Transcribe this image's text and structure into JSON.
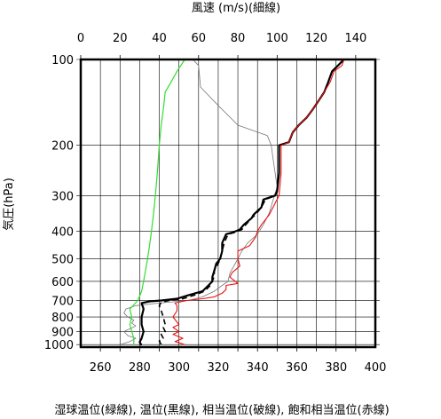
{
  "chart_data": {
    "type": "line",
    "title": "",
    "x_top_label": "風速 (m/s)(細線)",
    "x_bottom_label": "湿球温位(緑線), 温位(黒線), 相当温位(破線), 飽和相当温位(赤線)",
    "ylabel": "気圧(hPa)",
    "y_scale": "log",
    "ylim": [
      1020,
      100
    ],
    "x_bottom_lim": [
      250,
      400
    ],
    "x_top_lim": [
      0,
      150
    ],
    "grid": true,
    "y_ticks": [
      "100",
      "200",
      "300",
      "400",
      "500",
      "600",
      "700",
      "800",
      "900",
      "1000"
    ],
    "x_bottom_ticks": [
      "260",
      "280",
      "300",
      "320",
      "340",
      "360",
      "380",
      "400"
    ],
    "x_top_ticks": [
      "0",
      "20",
      "40",
      "60",
      "80",
      "100",
      "120",
      "140"
    ],
    "colors": {
      "wet_bulb": "#33dd33",
      "potential": "#000000",
      "equivalent": "#000000",
      "saturated": "#ee1111",
      "wind": "#777777"
    },
    "series": [
      {
        "key": "wind",
        "style": "thin-gray",
        "axis": "top",
        "points": [
          [
            20,
            1000
          ],
          [
            25,
            975
          ],
          [
            28,
            950
          ],
          [
            24,
            930
          ],
          [
            22,
            900
          ],
          [
            25,
            880
          ],
          [
            28,
            860
          ],
          [
            26,
            840
          ],
          [
            27,
            820
          ],
          [
            24,
            800
          ],
          [
            22,
            775
          ],
          [
            23,
            750
          ],
          [
            28,
            730
          ],
          [
            40,
            715
          ],
          [
            55,
            700
          ],
          [
            62,
            680
          ],
          [
            68,
            650
          ],
          [
            72,
            620
          ],
          [
            75,
            600
          ],
          [
            76,
            560
          ],
          [
            78,
            530
          ],
          [
            80,
            500
          ],
          [
            82,
            470
          ],
          [
            85,
            440
          ],
          [
            90,
            410
          ],
          [
            93,
            380
          ],
          [
            96,
            345
          ],
          [
            98,
            310
          ],
          [
            100,
            280
          ],
          [
            99,
            250
          ],
          [
            98,
            225
          ],
          [
            97,
            200
          ],
          [
            95,
            185
          ],
          [
            80,
            170
          ],
          [
            70,
            145
          ],
          [
            61,
            125
          ],
          [
            60,
            105
          ],
          [
            57,
            100
          ]
        ]
      },
      {
        "key": "wet_bulb",
        "style": "green",
        "axis": "bottom",
        "points": [
          [
            277,
            1000
          ],
          [
            277,
            950
          ],
          [
            276,
            900
          ],
          [
            275,
            850
          ],
          [
            276,
            800
          ],
          [
            275,
            750
          ],
          [
            277,
            725
          ],
          [
            279,
            700
          ],
          [
            281,
            650
          ],
          [
            282,
            600
          ],
          [
            283,
            550
          ],
          [
            284,
            500
          ],
          [
            285,
            450
          ],
          [
            286,
            400
          ],
          [
            287,
            350
          ],
          [
            288,
            300
          ],
          [
            289,
            250
          ],
          [
            290,
            200
          ],
          [
            291,
            170
          ],
          [
            292,
            150
          ],
          [
            293,
            130
          ],
          [
            296,
            120
          ],
          [
            299,
            110
          ],
          [
            303,
            100
          ]
        ]
      },
      {
        "key": "potential",
        "style": "black-solid",
        "axis": "bottom",
        "points": [
          [
            281,
            1005
          ],
          [
            280,
            980
          ],
          [
            281,
            950
          ],
          [
            282,
            900
          ],
          [
            281,
            850
          ],
          [
            281,
            800
          ],
          [
            282,
            750
          ],
          [
            281,
            715
          ],
          [
            285,
            705
          ],
          [
            291,
            700
          ],
          [
            299,
            690
          ],
          [
            305,
            670
          ],
          [
            312,
            650
          ],
          [
            315,
            620
          ],
          [
            317,
            600
          ],
          [
            317,
            580
          ],
          [
            318,
            550
          ],
          [
            319,
            520
          ],
          [
            321,
            500
          ],
          [
            322,
            470
          ],
          [
            322,
            440
          ],
          [
            324,
            410
          ],
          [
            327,
            405
          ],
          [
            331,
            395
          ],
          [
            333,
            380
          ],
          [
            337,
            360
          ],
          [
            338,
            350
          ],
          [
            342,
            330
          ],
          [
            343,
            310
          ],
          [
            349,
            300
          ],
          [
            350,
            290
          ],
          [
            351,
            250
          ],
          [
            351,
            200
          ],
          [
            356,
            195
          ],
          [
            358,
            180
          ],
          [
            361,
            170
          ],
          [
            365,
            160
          ],
          [
            368,
            150
          ],
          [
            371,
            140
          ],
          [
            374,
            130
          ],
          [
            376,
            120
          ],
          [
            378,
            110
          ],
          [
            381,
            105
          ],
          [
            384,
            100
          ]
        ]
      },
      {
        "key": "equivalent",
        "style": "black-dashed",
        "axis": "bottom",
        "points": [
          [
            291,
            1000
          ],
          [
            290,
            970
          ],
          [
            292,
            950
          ],
          [
            291,
            920
          ],
          [
            293,
            900
          ],
          [
            292,
            870
          ],
          [
            293,
            850
          ],
          [
            292,
            800
          ],
          [
            291,
            760
          ],
          [
            290,
            730
          ],
          [
            291,
            710
          ],
          [
            295,
            700
          ],
          [
            302,
            690
          ],
          [
            308,
            670
          ],
          [
            313,
            650
          ],
          [
            316,
            620
          ],
          [
            317,
            600
          ],
          [
            318,
            575
          ],
          [
            318,
            550
          ],
          [
            320,
            520
          ],
          [
            321,
            500
          ],
          [
            322,
            470
          ],
          [
            323,
            440
          ],
          [
            325,
            410
          ],
          [
            328,
            405
          ],
          [
            332,
            395
          ],
          [
            334,
            380
          ],
          [
            337,
            360
          ],
          [
            339,
            350
          ],
          [
            342,
            330
          ],
          [
            344,
            310
          ],
          [
            349,
            300
          ],
          [
            350,
            290
          ],
          [
            351,
            250
          ],
          [
            351,
            200
          ],
          [
            356,
            195
          ],
          [
            358,
            180
          ],
          [
            361,
            170
          ],
          [
            365,
            160
          ],
          [
            368,
            150
          ],
          [
            371,
            140
          ],
          [
            374,
            130
          ],
          [
            376,
            120
          ],
          [
            378,
            110
          ],
          [
            381,
            105
          ],
          [
            384,
            100
          ]
        ]
      },
      {
        "key": "saturated",
        "style": "red",
        "axis": "bottom",
        "points": [
          [
            303,
            1000
          ],
          [
            298,
            975
          ],
          [
            302,
            950
          ],
          [
            297,
            920
          ],
          [
            300,
            900
          ],
          [
            297,
            870
          ],
          [
            300,
            850
          ],
          [
            297,
            800
          ],
          [
            299,
            760
          ],
          [
            299,
            730
          ],
          [
            298,
            715
          ],
          [
            304,
            700
          ],
          [
            312,
            690
          ],
          [
            318,
            680
          ],
          [
            322,
            660
          ],
          [
            324,
            640
          ],
          [
            324,
            620
          ],
          [
            330,
            610
          ],
          [
            326,
            580
          ],
          [
            327,
            560
          ],
          [
            331,
            530
          ],
          [
            330,
            500
          ],
          [
            330,
            470
          ],
          [
            336,
            450
          ],
          [
            339,
            420
          ],
          [
            340,
            400
          ],
          [
            342,
            380
          ],
          [
            346,
            350
          ],
          [
            351,
            300
          ],
          [
            352,
            250
          ],
          [
            352,
            200
          ],
          [
            356,
            195
          ],
          [
            358,
            180
          ],
          [
            361,
            170
          ],
          [
            365,
            160
          ],
          [
            368,
            150
          ],
          [
            371,
            140
          ],
          [
            374,
            130
          ],
          [
            377,
            120
          ],
          [
            379,
            110
          ],
          [
            383,
            105
          ],
          [
            384,
            100
          ]
        ]
      }
    ]
  }
}
